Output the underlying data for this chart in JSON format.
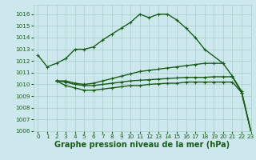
{
  "background_color": "#cce8ec",
  "grid_color": "#aacccc",
  "line_color": "#1a5c1a",
  "title": "Graphe pression niveau de la mer (hPa)",
  "xlim": [
    -0.5,
    23
  ],
  "ylim": [
    1006,
    1016.8
  ],
  "yticks": [
    1006,
    1007,
    1008,
    1009,
    1010,
    1011,
    1012,
    1013,
    1014,
    1015,
    1016
  ],
  "xticks": [
    0,
    1,
    2,
    3,
    4,
    5,
    6,
    7,
    8,
    9,
    10,
    11,
    12,
    13,
    14,
    15,
    16,
    17,
    18,
    19,
    20,
    21,
    22,
    23
  ],
  "series": [
    {
      "x": [
        0,
        1,
        2,
        3,
        4,
        5,
        6,
        7,
        8,
        9,
        10,
        11,
        12,
        13,
        14,
        15,
        16,
        17,
        18,
        20
      ],
      "y": [
        1012.5,
        1011.5,
        1011.8,
        1012.2,
        1013.0,
        1013.0,
        1013.2,
        1013.8,
        1014.3,
        1014.8,
        1015.3,
        1016.0,
        1015.7,
        1016.0,
        1016.0,
        1015.5,
        1014.8,
        1014.0,
        1013.0,
        1011.8
      ]
    },
    {
      "x": [
        2,
        3,
        4,
        5,
        6,
        7,
        8,
        9,
        10,
        11,
        12,
        13,
        14,
        15,
        16,
        17,
        18,
        19,
        20,
        21,
        22,
        23
      ],
      "y": [
        1010.3,
        1010.3,
        1010.1,
        1010.0,
        1010.1,
        1010.3,
        1010.5,
        1010.7,
        1010.9,
        1011.1,
        1011.2,
        1011.3,
        1011.4,
        1011.5,
        1011.6,
        1011.7,
        1011.8,
        1011.8,
        1011.8,
        1010.7,
        1009.4,
        1006.0
      ]
    },
    {
      "x": [
        2,
        3,
        4,
        5,
        6,
        7,
        8,
        9,
        10,
        11,
        12,
        13,
        14,
        15,
        16,
        17,
        18,
        19,
        20,
        21,
        22,
        23
      ],
      "y": [
        1010.3,
        1010.2,
        1010.0,
        1009.9,
        1009.9,
        1010.0,
        1010.1,
        1010.2,
        1010.3,
        1010.35,
        1010.4,
        1010.45,
        1010.5,
        1010.55,
        1010.6,
        1010.6,
        1010.6,
        1010.65,
        1010.65,
        1010.65,
        1009.3,
        1006.0
      ]
    },
    {
      "x": [
        2,
        3,
        4,
        5,
        6,
        7,
        8,
        9,
        10,
        11,
        12,
        13,
        14,
        15,
        16,
        17,
        18,
        19,
        20,
        21,
        22,
        23
      ],
      "y": [
        1010.3,
        1009.9,
        1009.7,
        1009.5,
        1009.5,
        1009.6,
        1009.7,
        1009.8,
        1009.9,
        1009.9,
        1010.0,
        1010.05,
        1010.1,
        1010.1,
        1010.2,
        1010.2,
        1010.2,
        1010.2,
        1010.2,
        1010.2,
        1009.3,
        1006.0
      ]
    }
  ],
  "marker": "+",
  "markersize": 3.5,
  "linewidth": 1.0,
  "title_fontsize": 7.0,
  "tick_fontsize": 5.2
}
